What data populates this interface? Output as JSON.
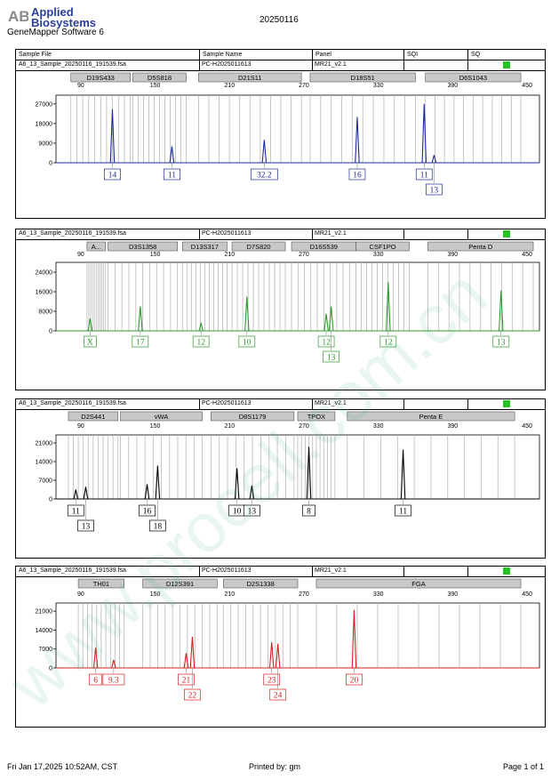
{
  "header": {
    "brand_line1": "Applied",
    "brand_line2": "Biosystems",
    "logo_mark": "AB",
    "software": "GeneMapper Software 6",
    "run_date": "20250116"
  },
  "columns": [
    "Sample File",
    "Sample Name",
    "Panel",
    "SQI",
    "SQ"
  ],
  "footer": {
    "timestamp": "Fri Jan 17,2025 10:52AM, CST",
    "printed_by": "Printed by: gm",
    "page": "Page 1 of 1"
  },
  "watermark": "www.procell.com.cn",
  "colors": {
    "blue": "#1f2a99",
    "green": "#2b9a2b",
    "black": "#000000",
    "red": "#d42020",
    "status": "#22c522"
  },
  "chart_data": [
    {
      "type": "line",
      "sample_file": "A6_13_Sample_20250116_191539.fsa",
      "sample_name": "PC-H2025011613",
      "panel": "MR21_v2.1",
      "color": "#1f2a99",
      "xlim": [
        70,
        460
      ],
      "xticks": [
        90,
        150,
        210,
        270,
        330,
        390,
        450
      ],
      "yticks": [
        0,
        9000,
        18000,
        27000
      ],
      "ymax": 31000,
      "markers": [
        {
          "name": "D19S433",
          "range": [
            82,
            130
          ]
        },
        {
          "name": "D5S818",
          "range": [
            132,
            175
          ]
        },
        {
          "name": "D21S11",
          "range": [
            185,
            268
          ]
        },
        {
          "name": "D18S51",
          "range": [
            275,
            360
          ]
        },
        {
          "name": "D6S1043",
          "range": [
            368,
            445
          ]
        }
      ],
      "peaks": [
        {
          "x": 115.5,
          "y": 24500,
          "label": "14"
        },
        {
          "x": 163.5,
          "y": 7500,
          "label": "11"
        },
        {
          "x": 238,
          "y": 10500,
          "label": "32.2"
        },
        {
          "x": 313,
          "y": 21000,
          "label": "16"
        },
        {
          "x": 367,
          "y": 27000,
          "label": "11"
        },
        {
          "x": 375,
          "y": 3500,
          "label": "13"
        }
      ]
    },
    {
      "type": "line",
      "sample_file": "A6_13_Sample_20250116_191539.fsa",
      "sample_name": "PC-H2025011613",
      "panel": "MR21_v2.1",
      "color": "#2b9a2b",
      "xlim": [
        70,
        460
      ],
      "xticks": [
        90,
        150,
        210,
        270,
        330,
        390,
        450
      ],
      "yticks": [
        0,
        8000,
        16000,
        24000
      ],
      "ymax": 28000,
      "markers": [
        {
          "name": "A...",
          "range": [
            95,
            110
          ]
        },
        {
          "name": "D3S1358",
          "range": [
            112,
            168
          ]
        },
        {
          "name": "D13S317",
          "range": [
            172,
            208
          ]
        },
        {
          "name": "D7S820",
          "range": [
            212,
            255
          ]
        },
        {
          "name": "D16S539",
          "range": [
            260,
            312
          ]
        },
        {
          "name": "CSF1PO",
          "range": [
            312,
            355
          ]
        },
        {
          "name": "Penta D",
          "range": [
            370,
            455
          ]
        }
      ],
      "peaks": [
        {
          "x": 97.5,
          "y": 5000,
          "label": "X"
        },
        {
          "x": 138,
          "y": 10000,
          "label": "17"
        },
        {
          "x": 187,
          "y": 3000,
          "label": "12"
        },
        {
          "x": 224,
          "y": 14000,
          "label": "10"
        },
        {
          "x": 288,
          "y": 7000,
          "label": "12"
        },
        {
          "x": 292,
          "y": 10000,
          "label": "13"
        },
        {
          "x": 338,
          "y": 20000,
          "label": "12"
        },
        {
          "x": 429,
          "y": 16500,
          "label": "13"
        }
      ]
    },
    {
      "type": "line",
      "sample_file": "A6_13_Sample_20250116_191539.fsa",
      "sample_name": "PC-H2025011613",
      "panel": "MR21_v2.1",
      "color": "#000000",
      "xlim": [
        70,
        460
      ],
      "xticks": [
        90,
        150,
        210,
        270,
        330,
        390,
        450
      ],
      "yticks": [
        0,
        7000,
        14000,
        21000
      ],
      "ymax": 24000,
      "markers": [
        {
          "name": "D2S441",
          "range": [
            80,
            120
          ]
        },
        {
          "name": "vWA",
          "range": [
            122,
            188
          ]
        },
        {
          "name": "D8S1179",
          "range": [
            195,
            262
          ]
        },
        {
          "name": "TPOX",
          "range": [
            265,
            295
          ]
        },
        {
          "name": "Penta E",
          "range": [
            305,
            440
          ]
        }
      ],
      "peaks": [
        {
          "x": 86,
          "y": 3500,
          "label": "11"
        },
        {
          "x": 94,
          "y": 4500,
          "label": "13"
        },
        {
          "x": 143.5,
          "y": 5500,
          "label": "16"
        },
        {
          "x": 152,
          "y": 12500,
          "label": "18"
        },
        {
          "x": 216,
          "y": 11500,
          "label": "10"
        },
        {
          "x": 228,
          "y": 5000,
          "label": "13"
        },
        {
          "x": 274,
          "y": 19500,
          "label": "8"
        },
        {
          "x": 350,
          "y": 18500,
          "label": "11"
        }
      ]
    },
    {
      "type": "line",
      "sample_file": "A6_13_Sample_20250116_191539.fsa",
      "sample_name": "PC-H2025011613",
      "panel": "MR21_v2.1",
      "color": "#d42020",
      "xlim": [
        70,
        460
      ],
      "xticks": [
        90,
        150,
        210,
        270,
        330,
        390,
        450
      ],
      "yticks": [
        0,
        7000,
        14000,
        21000
      ],
      "ymax": 24000,
      "markers": [
        {
          "name": "TH01",
          "range": [
            88,
            125
          ]
        },
        {
          "name": "D12S391",
          "range": [
            140,
            200
          ]
        },
        {
          "name": "D2S1338",
          "range": [
            205,
            265
          ]
        },
        {
          "name": "FGA",
          "range": [
            280,
            445
          ]
        }
      ],
      "peaks": [
        {
          "x": 102,
          "y": 7500,
          "label": "6"
        },
        {
          "x": 116.5,
          "y": 3000,
          "label": "9.3"
        },
        {
          "x": 175,
          "y": 5500,
          "label": "21"
        },
        {
          "x": 180,
          "y": 11500,
          "label": "22"
        },
        {
          "x": 244,
          "y": 9500,
          "label": "23"
        },
        {
          "x": 249,
          "y": 9000,
          "label": "24"
        },
        {
          "x": 310.5,
          "y": 21500,
          "label": "20"
        }
      ]
    }
  ]
}
